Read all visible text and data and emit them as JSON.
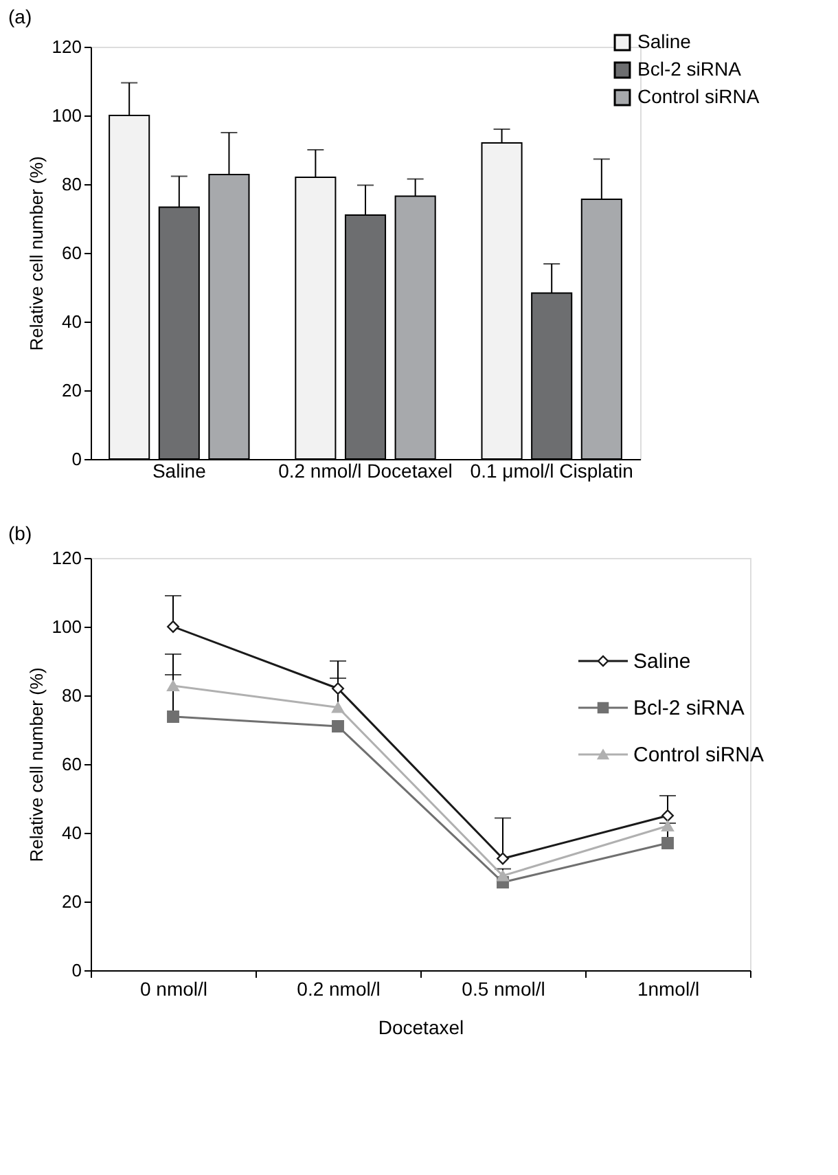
{
  "chart_data": [
    {
      "type": "bar",
      "title": "(a)",
      "ylabel": "Relative cell number (%)",
      "categories": [
        "Saline",
        "0.2 nmol/l Docetaxel",
        "0.1 μmol/l Cisplatin"
      ],
      "ylim": [
        0,
        120
      ],
      "yticks": [
        0,
        20,
        40,
        60,
        80,
        100,
        120
      ],
      "legend": "top right",
      "grid": false,
      "series": [
        {
          "name": "Saline",
          "color": "#f2f2f2",
          "values": [
            100,
            82,
            92
          ],
          "errors": [
            [
              100,
              109.5
            ],
            [
              82,
              90
            ],
            [
              92,
              96
            ]
          ]
        },
        {
          "name": "Bcl-2 siRNA",
          "color": "#6d6e70",
          "values": [
            73.3,
            71,
            48.3
          ],
          "errors": [
            [
              73.3,
              82.3
            ],
            [
              71,
              79.7
            ],
            [
              48.3,
              56.8
            ]
          ]
        },
        {
          "name": "Control siRNA",
          "color": "#a7a9ac",
          "values": [
            82.8,
            76.5,
            75.6
          ],
          "errors": [
            [
              82.8,
              95
            ],
            [
              76.5,
              81.5
            ],
            [
              75.6,
              87.3
            ]
          ]
        }
      ]
    },
    {
      "type": "line",
      "title": "(b)",
      "ylabel": "Relative cell number (%)",
      "xlabel": "Docetaxel",
      "categories": [
        "0 nmol/l",
        "0.2 nmol/l",
        "0.5 nmol/l",
        "1nmol/l"
      ],
      "ylim": [
        0,
        120
      ],
      "yticks": [
        0,
        20,
        40,
        60,
        80,
        100,
        120
      ],
      "legend": "right",
      "grid": false,
      "series": [
        {
          "name": "Saline",
          "color": "#1a1a1a",
          "marker": "diamond",
          "values": [
            100,
            82,
            32.5,
            45
          ],
          "errors": [
            [
              100,
              109
            ],
            [
              82,
              90
            ],
            [
              32.5,
              44.3
            ],
            [
              45,
              50.8
            ]
          ]
        },
        {
          "name": "Bcl-2 siRNA",
          "color": "#707070",
          "marker": "square",
          "values": [
            73.8,
            71,
            25.6,
            37
          ],
          "errors": [
            [
              73.8,
              86
            ],
            null,
            null,
            [
              37,
              42.8
            ]
          ]
        },
        {
          "name": "Control siRNA",
          "color": "#b0b0b0",
          "marker": "triangle",
          "values": [
            82.8,
            76.5,
            27.5,
            42
          ],
          "errors": [
            [
              82.8,
              92
            ],
            [
              76.5,
              85
            ],
            [
              27.5,
              29.5
            ],
            null
          ]
        }
      ]
    }
  ]
}
